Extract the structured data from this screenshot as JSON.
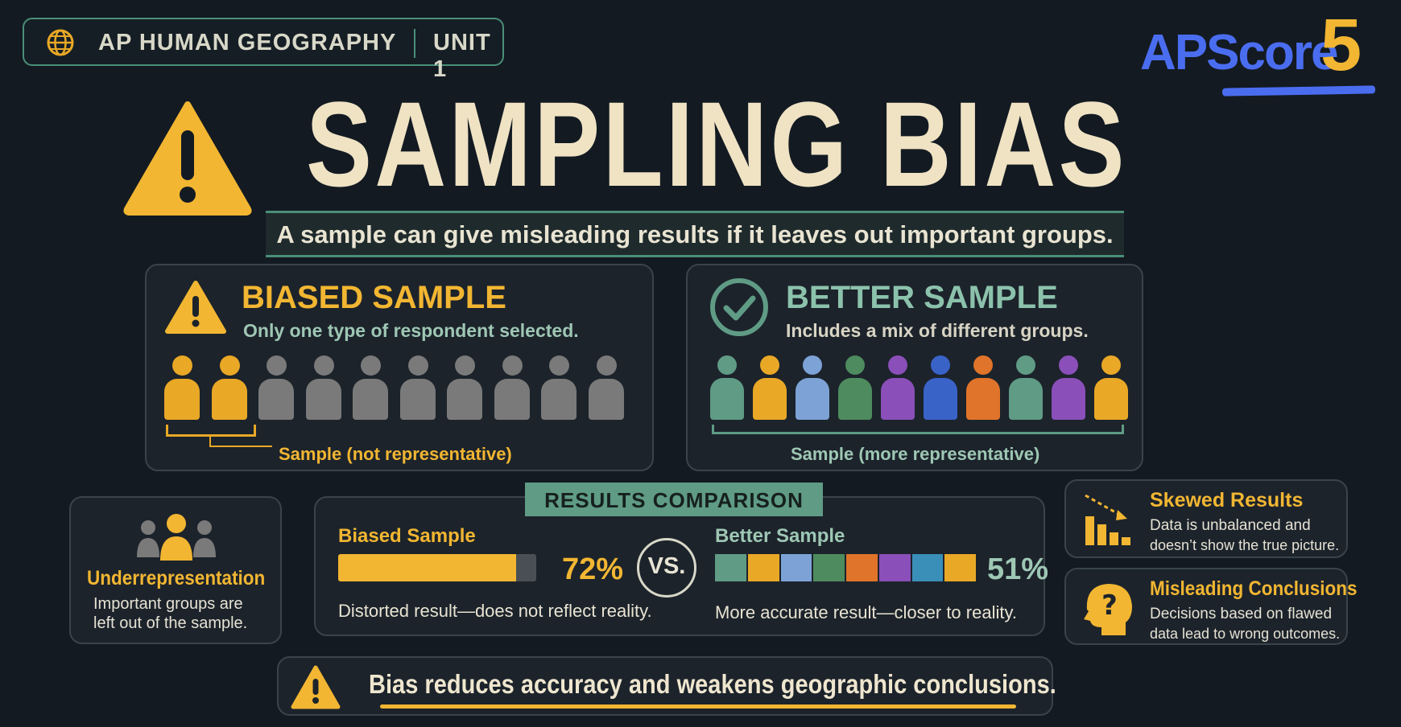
{
  "header": {
    "subject": "AP HUMAN GEOGRAPHY",
    "unit": "UNIT 1",
    "globe_icon": "globe-icon",
    "logo_text": "APScore",
    "logo_number": "5"
  },
  "title": "SAMPLING BIAS",
  "subtitle": "A sample can give misleading results if it leaves out important groups.",
  "biased_panel": {
    "icon": "warning-triangle-icon",
    "title": "BIASED SAMPLE",
    "subtitle": "Only one type of respondent selected.",
    "people_colors": [
      "#e9a826",
      "#e9a826",
      "#7a7a7a",
      "#7a7a7a",
      "#7a7a7a",
      "#7a7a7a",
      "#7a7a7a",
      "#7a7a7a",
      "#7a7a7a",
      "#7a7a7a"
    ],
    "caption": "Sample (not representative)"
  },
  "better_panel": {
    "icon": "check-circle-icon",
    "title": "BETTER SAMPLE",
    "subtitle": "Includes a mix of different groups.",
    "people_colors": [
      "#5f9b85",
      "#e9a826",
      "#7da2d6",
      "#4e8b5f",
      "#8a4fb8",
      "#3a63c8",
      "#e0742a",
      "#5f9b85",
      "#8a4fb8",
      "#e9a826"
    ],
    "caption": "Sample (more representative)"
  },
  "underrep": {
    "icon": "group-icon",
    "title": "Underrepresentation",
    "desc_line1": "Important groups are",
    "desc_line2": "left out of the sample."
  },
  "results": {
    "banner": "RESULTS COMPARISON",
    "biased_label": "Biased Sample",
    "biased_pct": "72%",
    "biased_value": 72,
    "biased_desc": "Distorted result—does not reflect reality.",
    "vs": "VS.",
    "better_label": "Better Sample",
    "better_pct": "51%",
    "better_value": 51,
    "better_desc": "More accurate result—closer to reality.",
    "better_segment_colors": [
      "#5f9b85",
      "#e9a826",
      "#7da2d6",
      "#4e8b5f",
      "#e0742a",
      "#8a4fb8",
      "#3a8fb8",
      "#e9a826"
    ]
  },
  "skewed": {
    "icon": "declining-bar-chart-icon",
    "title": "Skewed Results",
    "desc_line1": "Data is unbalanced and",
    "desc_line2": "doesn’t show the true picture."
  },
  "misleading": {
    "icon": "head-question-icon",
    "title": "Misleading Conclusions",
    "desc_line1": "Decisions based on flawed",
    "desc_line2": "data lead to wrong outcomes."
  },
  "footer": {
    "icon": "warning-triangle-icon",
    "text": "Bias reduces accuracy and weakens geographic conclusions."
  },
  "colors": {
    "accent_yellow": "#f2b632",
    "accent_green": "#5f9b85",
    "logo_blue": "#4a6df0",
    "background": "#131a22"
  }
}
